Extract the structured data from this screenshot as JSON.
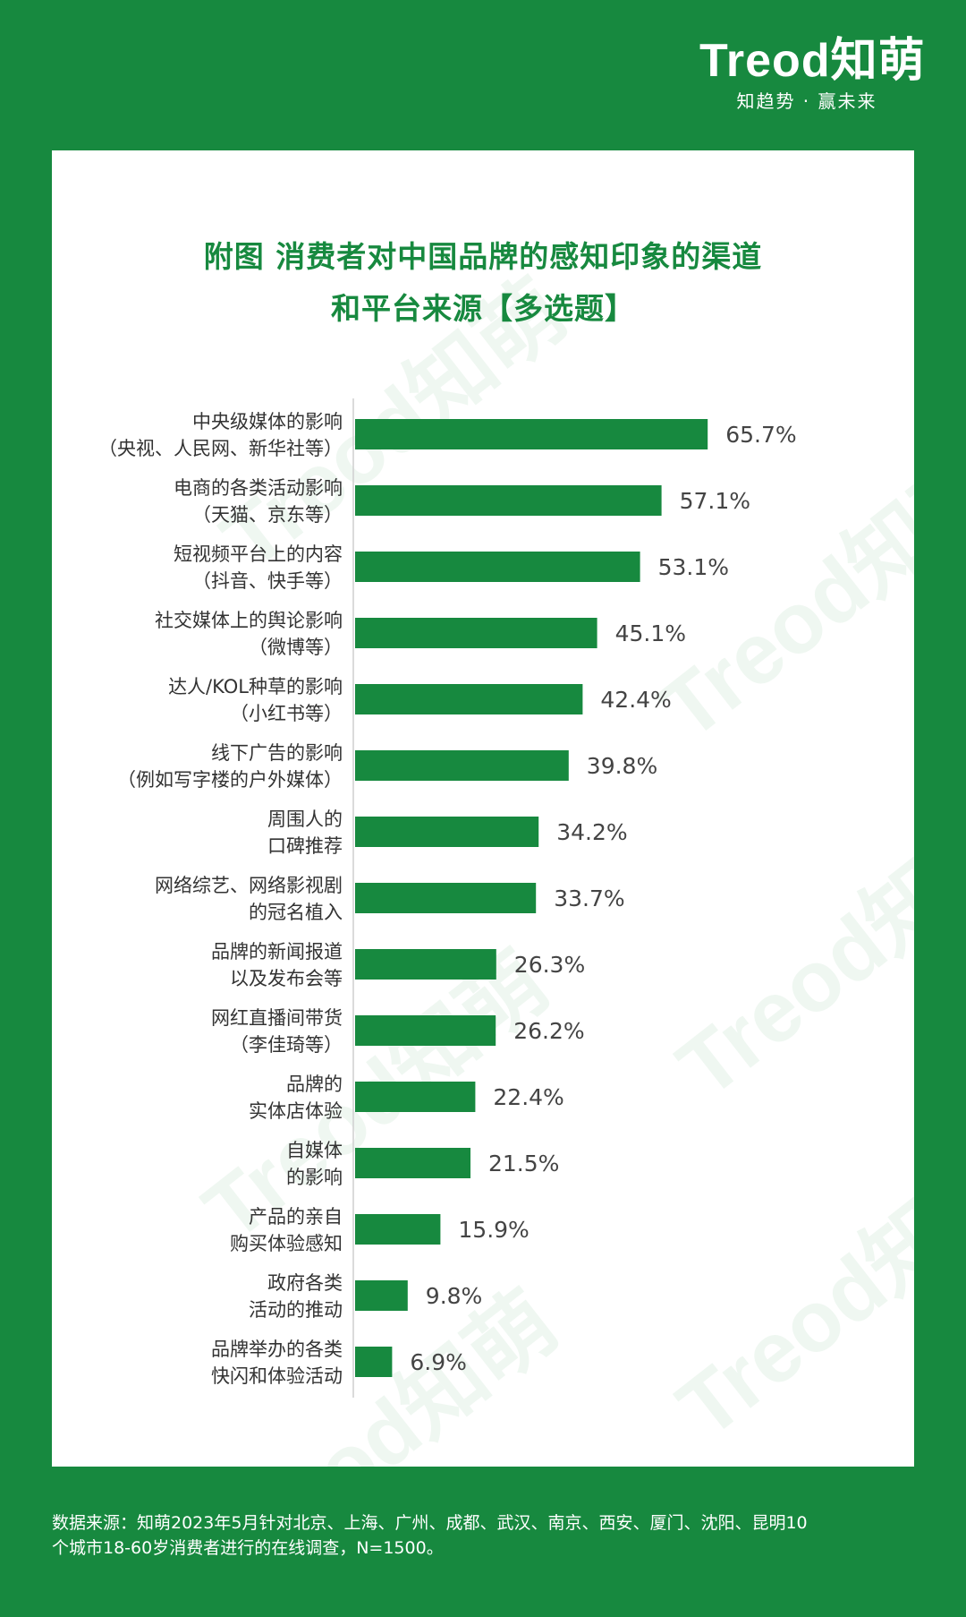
{
  "logo": {
    "wordmark": "Treod知萌",
    "tagline": "知趋势 · 赢未来"
  },
  "watermark_text": "Treod知萌",
  "colors": {
    "brand_green": "#17893f",
    "bar_green": "#17893f",
    "label_gray": "#333333",
    "value_gray": "#444444"
  },
  "chart_data": {
    "type": "bar",
    "orientation": "horizontal",
    "title_lines": [
      "附图 消费者对中国品牌的感知印象的渠道",
      "和平台来源【多选题】"
    ],
    "categories": [
      [
        "中央级媒体的影响",
        "（央视、人民网、新华社等）"
      ],
      [
        "电商的各类活动影响",
        "（天猫、京东等）"
      ],
      [
        "短视频平台上的内容",
        "（抖音、快手等）"
      ],
      [
        "社交媒体上的舆论影响",
        "（微博等）"
      ],
      [
        "达人/KOL种草的影响",
        "（小红书等）"
      ],
      [
        "线下广告的影响",
        "（例如写字楼的户外媒体）"
      ],
      [
        "周围人的",
        "口碑推荐"
      ],
      [
        "网络综艺、网络影视剧",
        "的冠名植入"
      ],
      [
        "品牌的新闻报道",
        "以及发布会等"
      ],
      [
        "网红直播间带货",
        "（李佳琦等）"
      ],
      [
        "品牌的",
        "实体店体验"
      ],
      [
        "自媒体",
        "的影响"
      ],
      [
        "产品的亲自",
        "购买体验感知"
      ],
      [
        "政府各类",
        "活动的推动"
      ],
      [
        "品牌举办的各类",
        "快闪和体验活动"
      ]
    ],
    "values": [
      65.7,
      57.1,
      53.1,
      45.1,
      42.4,
      39.8,
      34.2,
      33.7,
      26.3,
      26.2,
      22.4,
      21.5,
      15.9,
      9.8,
      6.9
    ],
    "value_labels": [
      "65.7%",
      "57.1%",
      "53.1%",
      "45.1%",
      "42.4%",
      "39.8%",
      "34.2%",
      "33.7%",
      "26.3%",
      "26.2%",
      "22.4%",
      "21.5%",
      "15.9%",
      "9.8%",
      "6.9%"
    ],
    "unit": "%",
    "grid": false,
    "legend": "none"
  },
  "footer": {
    "line1": "数据来源：知萌2023年5月针对北京、上海、广州、成都、武汉、南京、西安、厦门、沈阳、昆明10",
    "line2": "个城市18-60岁消费者进行的在线调查，N=1500。"
  }
}
